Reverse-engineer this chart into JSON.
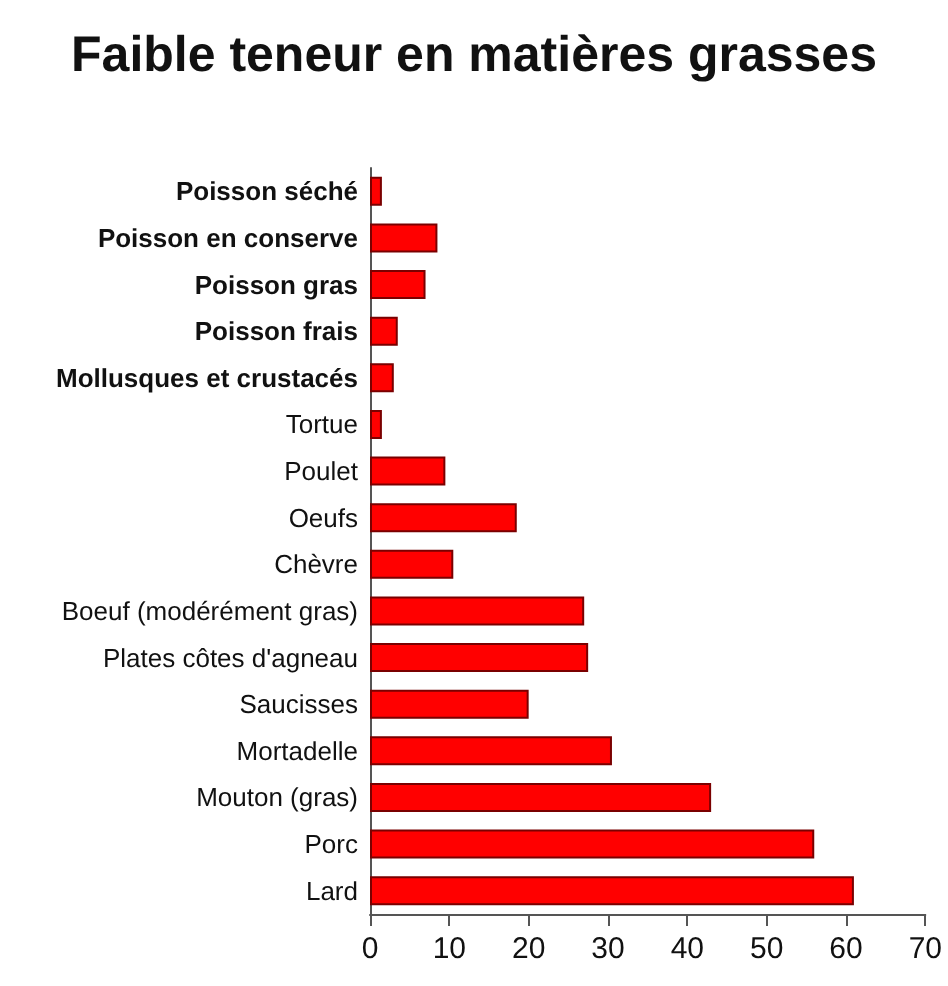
{
  "chart_data": {
    "type": "bar",
    "orientation": "horizontal",
    "title": "Faible teneur en matières grasses",
    "categories": [
      "Poisson séché",
      "Poisson en conserve",
      "Poisson gras",
      "Poisson frais",
      "Mollusques et crustacés",
      "Tortue",
      "Poulet",
      "Oeufs",
      "Chèvre",
      "Boeuf (modérément gras)",
      "Plates côtes d'agneau",
      "Saucisses",
      "Mortadelle",
      "Mouton (gras)",
      "Porc",
      "Lard"
    ],
    "values": [
      1.5,
      8.5,
      7,
      3.5,
      3,
      1.5,
      9.5,
      18.5,
      10.5,
      27,
      27.5,
      20,
      30.5,
      43,
      56,
      61
    ],
    "color": "#ff0000",
    "xlim": [
      0,
      70
    ],
    "xticks": [
      0,
      10,
      20,
      30,
      40,
      50,
      60,
      70
    ]
  }
}
